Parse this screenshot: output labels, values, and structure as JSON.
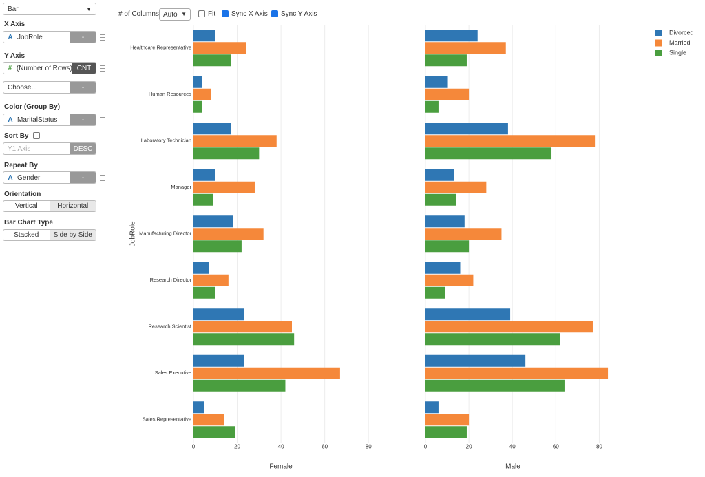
{
  "sidebar": {
    "chart_type": "Bar",
    "x_axis": {
      "label": "X Axis",
      "icon": "A",
      "field": "JobRole",
      "button": "-"
    },
    "y_axis": {
      "label": "Y Axis",
      "icon": "#",
      "field": "(Number of Rows)",
      "button": "CNT",
      "extra_field": "Choose...",
      "extra_button": "-"
    },
    "color": {
      "label": "Color (Group By)",
      "icon": "A",
      "field": "MaritalStatus",
      "button": "-"
    },
    "sort_by": {
      "label": "Sort By",
      "placeholder": "Y1 Axis",
      "button": "DESC"
    },
    "repeat_by": {
      "label": "Repeat By",
      "icon": "A",
      "field": "Gender",
      "button": "-"
    },
    "orientation": {
      "label": "Orientation",
      "options": [
        "Vertical",
        "Horizontal"
      ]
    },
    "bar_chart_type": {
      "label": "Bar Chart Type",
      "options": [
        "Stacked",
        "Side by Side"
      ]
    }
  },
  "toolbar": {
    "columns_label": "# of Columns:",
    "columns_value": "Auto",
    "fit": "Fit",
    "sync_x": "Sync X Axis",
    "sync_y": "Sync Y Axis"
  },
  "chart_data": [
    {
      "type": "bar",
      "orientation": "horizontal",
      "xlabel": "Female",
      "ylabel": "JobRole",
      "categories": [
        "Healthcare Representative",
        "Human Resources",
        "Laboratory Technician",
        "Manager",
        "Manufacturing Director",
        "Research Director",
        "Research Scientist",
        "Sales Executive",
        "Sales Representative"
      ],
      "series": [
        {
          "name": "Divorced",
          "color": "#2f77b4",
          "values": [
            10,
            4,
            17,
            10,
            18,
            7,
            23,
            23,
            5
          ]
        },
        {
          "name": "Married",
          "color": "#f5883a",
          "values": [
            24,
            8,
            38,
            28,
            32,
            16,
            45,
            67,
            14
          ]
        },
        {
          "name": "Single",
          "color": "#4a9e3f",
          "values": [
            17,
            4,
            30,
            9,
            22,
            10,
            46,
            42,
            19
          ]
        }
      ],
      "xlim": [
        0,
        90
      ],
      "xticks": [
        0,
        20,
        40,
        60,
        80
      ],
      "grid": true
    },
    {
      "type": "bar",
      "orientation": "horizontal",
      "xlabel": "Male",
      "series": [
        {
          "color": "#2f77b4",
          "values": [
            24,
            10,
            38,
            13,
            18,
            16,
            39,
            46,
            6
          ]
        },
        {
          "color": "#f5883a",
          "values": [
            37,
            20,
            78,
            28,
            35,
            22,
            77,
            84,
            20
          ]
        },
        {
          "color": "#4a9e3f",
          "values": [
            19,
            6,
            58,
            14,
            20,
            9,
            62,
            64,
            19
          ]
        }
      ],
      "xlim": [
        0,
        90
      ],
      "xticks": [
        0,
        20,
        40,
        60,
        80
      ],
      "grid": true
    }
  ]
}
